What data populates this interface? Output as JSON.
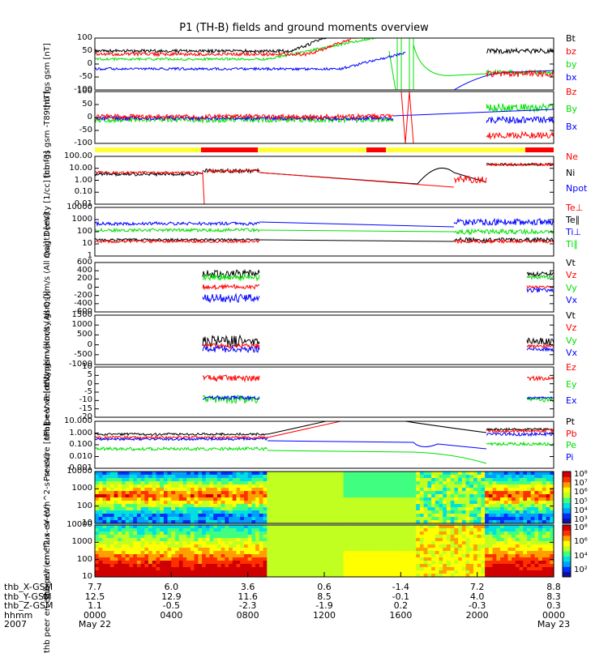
{
  "title": "P1 (TH-B) fields and ground moments overview",
  "colors": {
    "black": "#000000",
    "red": "#ff0000",
    "green": "#00e000",
    "blue": "#0000ff",
    "yellow": "#ffff33"
  },
  "chart_data": [
    {
      "type": "line",
      "panel": "fgs",
      "ylabel": [
        "thb",
        "fgs",
        "gsm",
        "[nT]"
      ],
      "ylim": [
        -100,
        100
      ],
      "yticks": [
        "100",
        "50",
        "0",
        "-50",
        "-100"
      ],
      "legend": [
        {
          "name": "Bt",
          "color": "#000000"
        },
        {
          "name": "bz",
          "color": "#ff0000"
        },
        {
          "name": "by",
          "color": "#00e000"
        },
        {
          "name": "bx",
          "color": "#0000ff"
        }
      ]
    },
    {
      "type": "line",
      "panel": "fgs_t89",
      "ylabel": [
        "thb",
        "fgs",
        "gsm",
        "-T89",
        "[nT]"
      ],
      "ylim": [
        -100,
        100
      ],
      "yticks": [
        "100",
        "50",
        "0",
        "-50",
        "-100"
      ],
      "legend": [
        {
          "name": "Bz",
          "color": "#ff0000"
        },
        {
          "name": "By",
          "color": "#00e000"
        },
        {
          "name": "Bx",
          "color": "#0000ff"
        }
      ]
    },
    {
      "type": "line",
      "panel": "density",
      "ylabel": [
        "Density",
        "[1/cc]",
        "[cm-3]"
      ],
      "ylim": [
        0.01,
        100
      ],
      "log": true,
      "yticks": [
        "100.00",
        "10.00",
        "1.00",
        "0.10",
        "0.01"
      ],
      "legend": [
        {
          "name": "Ne",
          "color": "#ff0000"
        },
        {
          "name": "Ni",
          "color": "#000000"
        },
        {
          "name": "Npot",
          "color": "#0000ff"
        }
      ]
    },
    {
      "type": "line",
      "panel": "temp",
      "ylabel": [
        "magt3",
        "[eV]"
      ],
      "ylim": [
        1,
        10000
      ],
      "log": true,
      "yticks": [
        "10000",
        "1000",
        "100",
        "10",
        "1"
      ],
      "legend": [
        {
          "name": "Te⊥",
          "color": "#ff0000"
        },
        {
          "name": "Te∥",
          "color": "#000000"
        },
        {
          "name": "Ti⊥",
          "color": "#0000ff"
        },
        {
          "name": "Ti∥",
          "color": "#00e000"
        }
      ]
    },
    {
      "type": "line",
      "panel": "peir_vel",
      "ylabel": [
        "thb",
        "peir",
        "velocity",
        "gsm",
        "[km/s (All Qs)]"
      ],
      "ylim": [
        -600,
        600
      ],
      "yticks": [
        "600",
        "400",
        "200",
        "0",
        "-200",
        "-400",
        "-600"
      ],
      "legend": [
        {
          "name": "Vt",
          "color": "#000000"
        },
        {
          "name": "Vz",
          "color": "#ff0000"
        },
        {
          "name": "Vy",
          "color": "#00e000"
        },
        {
          "name": "Vx",
          "color": "#0000ff"
        }
      ]
    },
    {
      "type": "line",
      "panel": "peer_vel",
      "ylabel": [
        "thb",
        "peer",
        "velocity",
        "gsm",
        "[km/s (All Qs)]"
      ],
      "ylim": [
        -1000,
        1500
      ],
      "yticks": [
        "1500",
        "1000",
        "500",
        "0",
        "-500",
        "-1000"
      ],
      "legend": [
        {
          "name": "Vt",
          "color": "#000000"
        },
        {
          "name": "Vz",
          "color": "#ff0000"
        },
        {
          "name": "Vy",
          "color": "#00e000"
        },
        {
          "name": "Vx",
          "color": "#0000ff"
        }
      ]
    },
    {
      "type": "line",
      "panel": "efield",
      "ylabel": [
        "E=-VxB",
        "[mV/m]"
      ],
      "ylim": [
        -20,
        10
      ],
      "yticks": [
        "10",
        "5",
        "0",
        "-5",
        "-10",
        "-15",
        "-20"
      ],
      "legend": [
        {
          "name": "Ez",
          "color": "#ff0000"
        },
        {
          "name": "Ey",
          "color": "#00e000"
        },
        {
          "name": "Ex",
          "color": "#0000ff"
        }
      ]
    },
    {
      "type": "line",
      "panel": "pressure",
      "ylabel": [
        "Pressure",
        "[nPa]"
      ],
      "ylim": [
        0.001,
        10
      ],
      "log": true,
      "yticks": [
        "10.000",
        "1.000",
        "0.100",
        "0.010",
        "0.001"
      ],
      "legend": [
        {
          "name": "Pt",
          "color": "#000000"
        },
        {
          "name": "Pb",
          "color": "#ff0000"
        },
        {
          "name": "Pe",
          "color": "#00e000"
        },
        {
          "name": "Pi",
          "color": "#0000ff"
        }
      ]
    },
    {
      "type": "heatmap",
      "panel": "peir_spec",
      "ylabel": [
        "thb",
        "peir",
        "en",
        "eflux",
        "eV",
        "(cm^2-s-",
        "sr-eV)"
      ],
      "yticks": [
        "10000",
        "1000",
        "100",
        "10"
      ],
      "colorbar": [
        "10⁸",
        "10⁷",
        "10⁶",
        "10⁵",
        "10⁴",
        "10³"
      ]
    },
    {
      "type": "heatmap",
      "panel": "peer_spec",
      "ylabel": [
        "thb",
        "peer",
        "en",
        "eflux",
        "eV",
        "(cm^2-s-",
        "sr-eV)"
      ],
      "yticks": [
        "10000",
        "1000",
        "100",
        "10"
      ],
      "colorbar": [
        "10⁸",
        "10⁶",
        "10⁴",
        "10²"
      ]
    }
  ],
  "xaxis": {
    "row_labels": [
      "thb_X-GSM",
      "thb_Y-GSM",
      "thb_Z-GSM",
      "hhmm",
      "2007"
    ],
    "ticks": [
      {
        "x": "7.7",
        "y": "12.5",
        "z": "1.1",
        "hhmm": "0000",
        "date": "May 22"
      },
      {
        "x": "6.0",
        "y": "12.9",
        "z": "-0.5",
        "hhmm": "0400",
        "date": ""
      },
      {
        "x": "3.6",
        "y": "11.6",
        "z": "-2.3",
        "hhmm": "0800",
        "date": ""
      },
      {
        "x": "0.6",
        "y": "8.5",
        "z": "-1.9",
        "hhmm": "1200",
        "date": ""
      },
      {
        "x": "-1.4",
        "y": "-0.1",
        "z": "0.2",
        "hhmm": "1600",
        "date": ""
      },
      {
        "x": "7.2",
        "y": "4.0",
        "z": "-0.3",
        "hhmm": "2000",
        "date": ""
      },
      {
        "x": "8.8",
        "y": "8.3",
        "z": "0.3",
        "hhmm": "0000",
        "date": "May 23"
      }
    ]
  }
}
